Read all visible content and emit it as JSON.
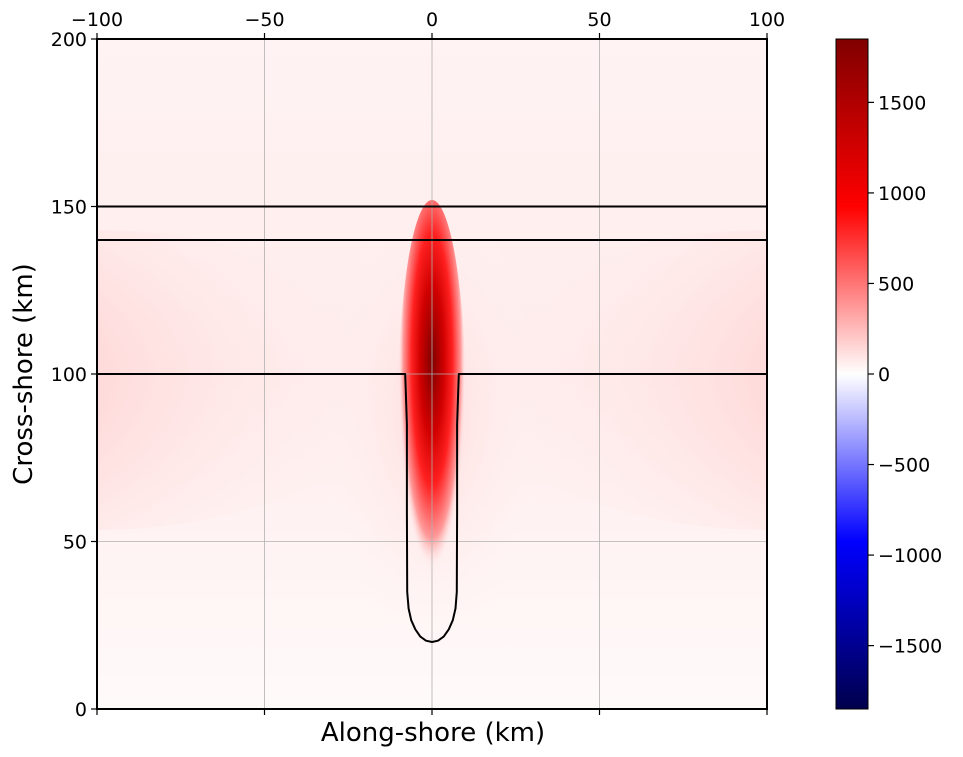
{
  "chart_data": {
    "type": "heatmap",
    "title": "",
    "xlabel": "Along-shore (km)",
    "ylabel": "Cross-shore (km)",
    "xlim": [
      -100,
      100
    ],
    "ylim": [
      0,
      200
    ],
    "x_ticks": [
      -100,
      -50,
      0,
      50,
      100
    ],
    "x_tick_labels": [
      "−100",
      "−50",
      "0",
      "50",
      "100"
    ],
    "y_ticks": [
      0,
      50,
      100,
      150,
      200
    ],
    "y_tick_labels": [
      "0",
      "50",
      "100",
      "150",
      "200"
    ],
    "x_tick_position": "top",
    "grid": true,
    "colormap": "seismic",
    "colormap_stops": [
      "#00004c",
      "#0000ff",
      "#ffffff",
      "#ff0000",
      "#800000"
    ],
    "colorbar": {
      "range": [
        -1850,
        1850
      ],
      "ticks": [
        -1500,
        -1000,
        -500,
        0,
        500,
        1000,
        1500
      ],
      "tick_labels": [
        "−1500",
        "−1000",
        "−500",
        "0",
        "500",
        "1000",
        "1500"
      ]
    },
    "field_features": {
      "canyon_jet": {
        "x_center": 0,
        "y_range": [
          20,
          140
        ],
        "peak_value": 1850
      },
      "shelf_edge_band": {
        "y": 100,
        "value_near_edges": 350
      }
    },
    "contour_lines": [
      {
        "name": "shelf-break-line-150",
        "points": [
          [
            -100,
            150
          ],
          [
            100,
            150
          ]
        ]
      },
      {
        "name": "shelf-break-line-140",
        "points": [
          [
            -100,
            140
          ],
          [
            100,
            140
          ]
        ]
      },
      {
        "name": "canyon-outline",
        "points": [
          [
            -100,
            100
          ],
          [
            -8,
            100
          ],
          [
            -7.5,
            85
          ],
          [
            -7.5,
            59
          ],
          [
            -7.4,
            35
          ],
          [
            -7,
            30
          ],
          [
            -6.2,
            26.5
          ],
          [
            -5,
            23.8
          ],
          [
            -3.5,
            21.6
          ],
          [
            -1.8,
            20.4
          ],
          [
            0,
            20
          ],
          [
            1.8,
            20.4
          ],
          [
            3.5,
            21.6
          ],
          [
            5,
            23.8
          ],
          [
            6.2,
            26.5
          ],
          [
            7,
            30
          ],
          [
            7.4,
            35
          ],
          [
            7.5,
            59
          ],
          [
            7.5,
            85
          ],
          [
            8,
            100
          ],
          [
            100,
            100
          ]
        ]
      }
    ]
  }
}
